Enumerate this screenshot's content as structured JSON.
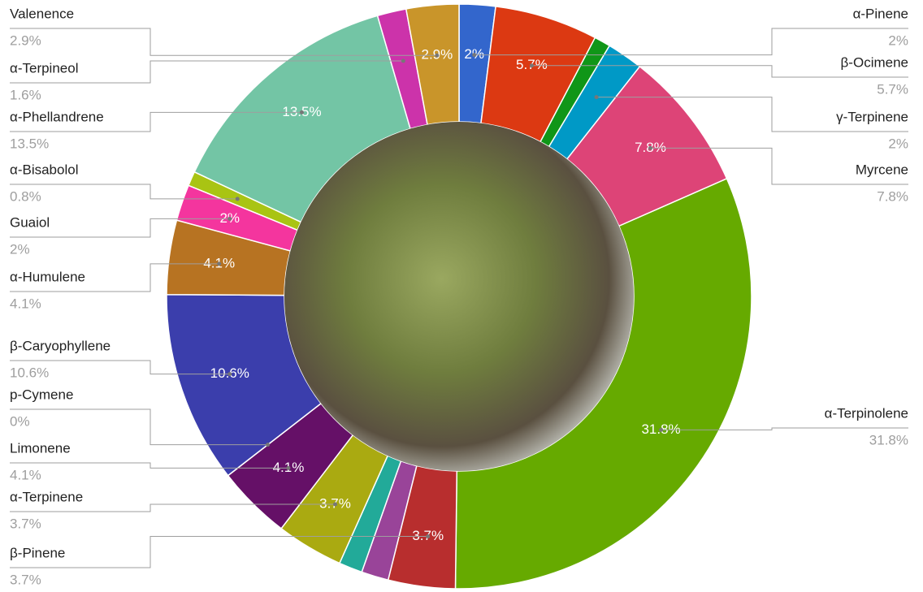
{
  "chart_data": {
    "type": "donut",
    "categories": [
      "α-Pinene",
      "β-Ocimene",
      null,
      "γ-Terpinene",
      "Myrcene",
      "α-Terpinolene",
      "β-Pinene",
      null,
      null,
      "α-Terpinene",
      "Limonene",
      "p-Cymene",
      "β-Caryophyllene",
      "α-Humulene",
      "Guaiol",
      "α-Bisabolol",
      "α-Phellandrene",
      "α-Terpineol",
      "Valenence"
    ],
    "values": [
      2,
      5.7,
      0.9,
      2,
      7.8,
      31.8,
      3.7,
      1.5,
      1.3,
      3.7,
      4.1,
      0,
      10.6,
      4.1,
      2,
      0.8,
      13.5,
      1.6,
      2.9
    ],
    "value_labels": [
      "2%",
      "5.7%",
      null,
      "2%",
      "7.8%",
      "31.8%",
      "3.7%",
      null,
      null,
      "3.7%",
      "4.1%",
      "0%",
      "10.6%",
      "4.1%",
      "2%",
      "0.8%",
      "13.5%",
      "1.6%",
      "2.9%"
    ],
    "colors": [
      "#3366cc",
      "#dc3912",
      "#109618",
      "#0099c6",
      "#dd4477",
      "#66aa00",
      "#b82e2e",
      "#994499",
      "#22aa99",
      "#aaaa11",
      "#651067",
      "#5574a6",
      "#3b3eac",
      "#b77322",
      "#f4359e",
      "#a9c413",
      "#73c5a5",
      "#cc33aa",
      "#c9952a"
    ]
  }
}
